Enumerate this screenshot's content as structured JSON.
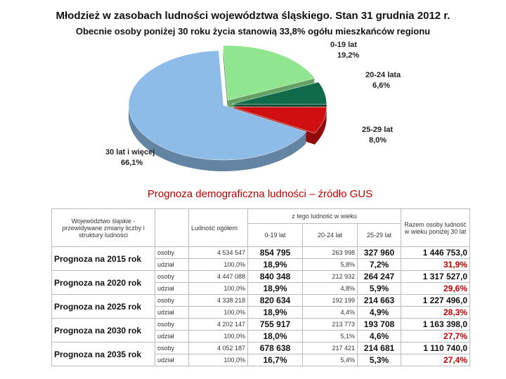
{
  "header": {
    "title": "Młodzież w zasobach ludności województwa śląskiego. Stan  31 grudnia 2012 r.",
    "subtitle": "Obecnie osoby poniżej 30 roku życia stanowią  33,8%  ogółu mieszkańców regionu"
  },
  "chart_data": {
    "type": "pie",
    "categories": [
      "0-19 lat",
      "20-24 lata",
      "25-29 lat",
      "30 lat i więcej"
    ],
    "values": [
      19.2,
      6.6,
      8.0,
      66.1
    ],
    "value_labels": [
      "19,2%",
      "6,6%",
      "8,0%",
      "66,1%"
    ],
    "colors": [
      "#8fe68f",
      "#0f6b4a",
      "#d01010",
      "#8dbce9"
    ]
  },
  "table": {
    "title": "Prognoza demograficzna ludności – źródło GUS",
    "header": {
      "region": "Województwo śląskie - przewidywane zmiany liczby i struktury ludności",
      "total": "Ludność ogółem",
      "group": "z tego ludność w wieku",
      "ages": [
        "0-19 lat",
        "20-24 lat",
        "25-29 lat"
      ],
      "sum": "Razem osoby ludność w wieku poniżej 30 lat"
    },
    "row_types": [
      "osoby",
      "udział"
    ],
    "rows": [
      {
        "label": "Prognoza na 2015 rok",
        "people": [
          "4 534 547",
          "854 795",
          "263 998",
          "327 960",
          "1 446 753,0"
        ],
        "share": [
          "100,0%",
          "18,9%",
          "5,8%",
          "7,2%",
          "31,9%"
        ]
      },
      {
        "label": "Prognoza na 2020 rok",
        "people": [
          "4 447 088",
          "840 348",
          "212 932",
          "264 247",
          "1 317 527,0"
        ],
        "share": [
          "100,0%",
          "18,9%",
          "4,8%",
          "5,9%",
          "29,6%"
        ]
      },
      {
        "label": "Prognoza na 2025 rok",
        "people": [
          "4 338 218",
          "820 634",
          "192 199",
          "214 663",
          "1 227 496,0"
        ],
        "share": [
          "100,0%",
          "18,9%",
          "4,4%",
          "4,9%",
          "28,3%"
        ]
      },
      {
        "label": "Prognoza na 2030 rok",
        "people": [
          "4 202 147",
          "755 917",
          "213 773",
          "193 708",
          "1 163 398,0"
        ],
        "share": [
          "100,0%",
          "18,0%",
          "5,1%",
          "4,6%",
          "27,7%"
        ]
      },
      {
        "label": "Prognoza na 2035 rok",
        "people": [
          "4 052 187",
          "678 638",
          "217 421",
          "214 681",
          "1 110 740,0"
        ],
        "share": [
          "100,0%",
          "16,7%",
          "5,4%",
          "5,3%",
          "27,4%"
        ]
      }
    ]
  }
}
